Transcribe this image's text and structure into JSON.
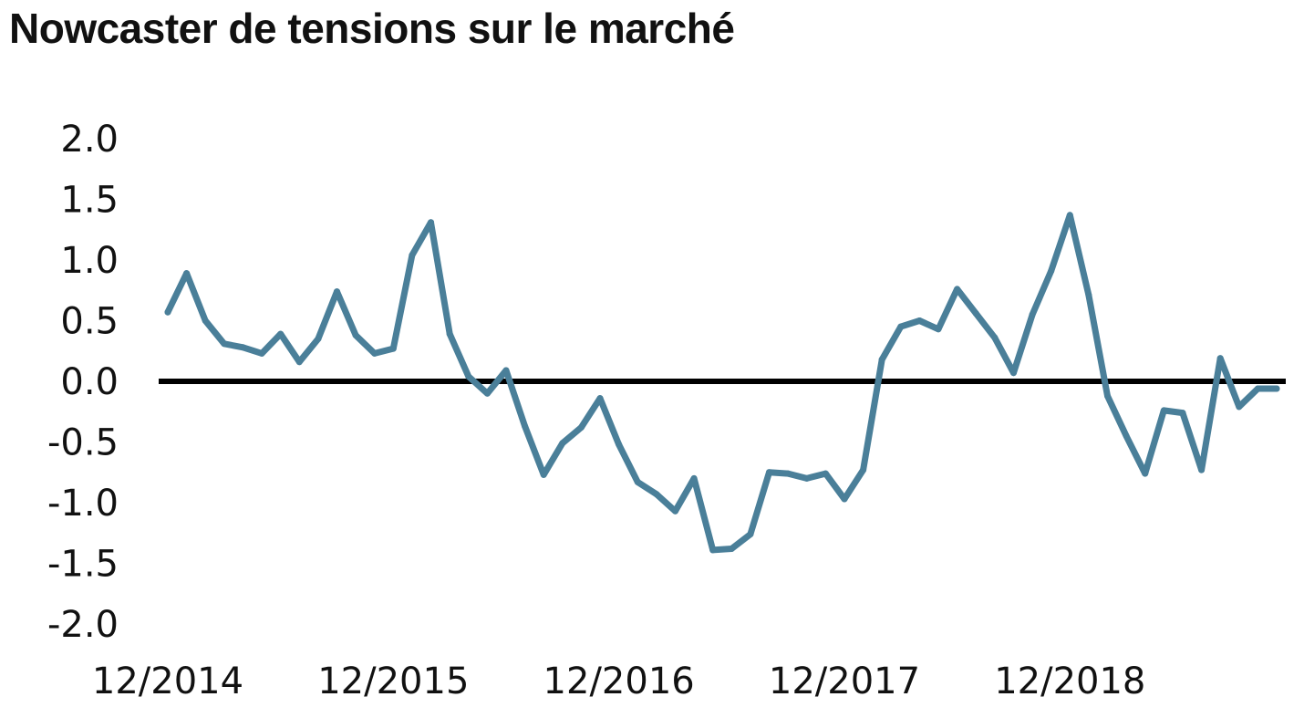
{
  "chart_data": {
    "type": "line",
    "title": "Nowcaster de tensions sur le marché",
    "xlabel": "",
    "ylabel": "",
    "ylim": [
      -2.0,
      2.0
    ],
    "y_ticks": [
      "2.0",
      "1.5",
      "1.0",
      "0.5",
      "0.0",
      "-0.5",
      "-1.0",
      "-1.5",
      "-2.0"
    ],
    "x_ticks": [
      "12/2014",
      "12/2015",
      "12/2016",
      "12/2017",
      "12/2018"
    ],
    "zero_line": true,
    "grid": false,
    "line_color": "#4A7F99",
    "series": [
      {
        "x": [
          "12/2014",
          "01/2015",
          "02/2015",
          "03/2015",
          "04/2015",
          "05/2015",
          "06/2015",
          "07/2015",
          "08/2015",
          "09/2015",
          "10/2015",
          "11/2015",
          "12/2015",
          "01/2016",
          "02/2016",
          "03/2016",
          "04/2016",
          "05/2016",
          "06/2016",
          "07/2016",
          "08/2016",
          "09/2016",
          "10/2016",
          "11/2016",
          "12/2016",
          "01/2017",
          "02/2017",
          "03/2017",
          "04/2017",
          "05/2017",
          "06/2017",
          "07/2017",
          "08/2017",
          "09/2017",
          "10/2017",
          "11/2017",
          "12/2017",
          "01/2018",
          "02/2018",
          "03/2018",
          "04/2018",
          "05/2018",
          "06/2018",
          "07/2018",
          "08/2018",
          "09/2018",
          "10/2018",
          "11/2018",
          "12/2018",
          "01/2019",
          "02/2019",
          "03/2019",
          "04/2019",
          "05/2019",
          "06/2019",
          "07/2019",
          "08/2019",
          "09/2019",
          "10/2019",
          "11/2019"
        ],
        "values": [
          0.57,
          0.89,
          0.5,
          0.31,
          0.28,
          0.23,
          0.39,
          0.16,
          0.35,
          0.74,
          0.38,
          0.23,
          0.27,
          1.04,
          1.31,
          0.39,
          0.04,
          -0.1,
          0.09,
          -0.37,
          -0.77,
          -0.51,
          -0.38,
          -0.14,
          -0.52,
          -0.83,
          -0.93,
          -1.07,
          -0.8,
          -1.39,
          -1.38,
          -1.26,
          -0.75,
          -0.76,
          -0.8,
          -0.76,
          -0.97,
          -0.73,
          0.18,
          0.45,
          0.5,
          0.43,
          0.76,
          0.56,
          0.36,
          0.07,
          0.55,
          0.91,
          1.37,
          0.71,
          -0.12,
          -0.45,
          -0.76,
          -0.24,
          -0.26,
          -0.73,
          0.19,
          -0.21,
          -0.06,
          -0.06
        ]
      }
    ]
  }
}
